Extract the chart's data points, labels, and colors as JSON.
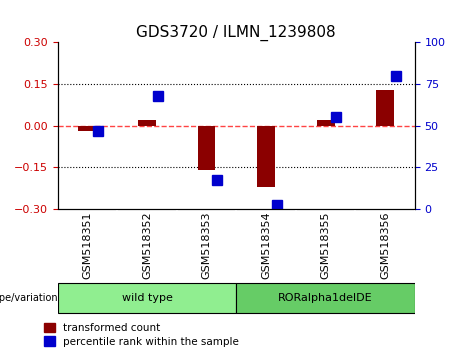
{
  "title": "GDS3720 / ILMN_1239808",
  "samples": [
    "GSM518351",
    "GSM518352",
    "GSM518353",
    "GSM518354",
    "GSM518355",
    "GSM518356"
  ],
  "red_values": [
    -0.02,
    0.02,
    -0.16,
    -0.22,
    0.02,
    0.13
  ],
  "blue_values_pct": [
    47,
    68,
    17,
    2,
    55,
    80
  ],
  "ylim_left": [
    -0.3,
    0.3
  ],
  "ylim_right": [
    0,
    100
  ],
  "yticks_left": [
    -0.3,
    -0.15,
    0,
    0.15,
    0.3
  ],
  "yticks_right": [
    0,
    25,
    50,
    75,
    100
  ],
  "hlines": [
    -0.15,
    0,
    0.15
  ],
  "groups": [
    {
      "label": "wild type",
      "samples": [
        0,
        1,
        2
      ],
      "color": "#90EE90"
    },
    {
      "label": "RORalpha1delDE",
      "samples": [
        3,
        4,
        5
      ],
      "color": "#66CC66"
    }
  ],
  "bar_color_red": "#8B0000",
  "bar_color_blue": "#0000CD",
  "bar_width": 0.3,
  "blue_marker_size": 7,
  "legend_red_label": "transformed count",
  "legend_blue_label": "percentile rank within the sample",
  "x_positions": [
    0,
    1,
    2,
    3,
    4,
    5
  ],
  "background_color": "#ffffff",
  "plot_bg": "#ffffff",
  "genotype_label": "genotype/variation",
  "left_tick_color": "#CC0000",
  "right_tick_color": "#0000CC",
  "zero_line_color": "#FF4444",
  "grid_color": "black",
  "title_fontsize": 11,
  "axis_fontsize": 9,
  "tick_fontsize": 8,
  "label_fontsize": 8
}
